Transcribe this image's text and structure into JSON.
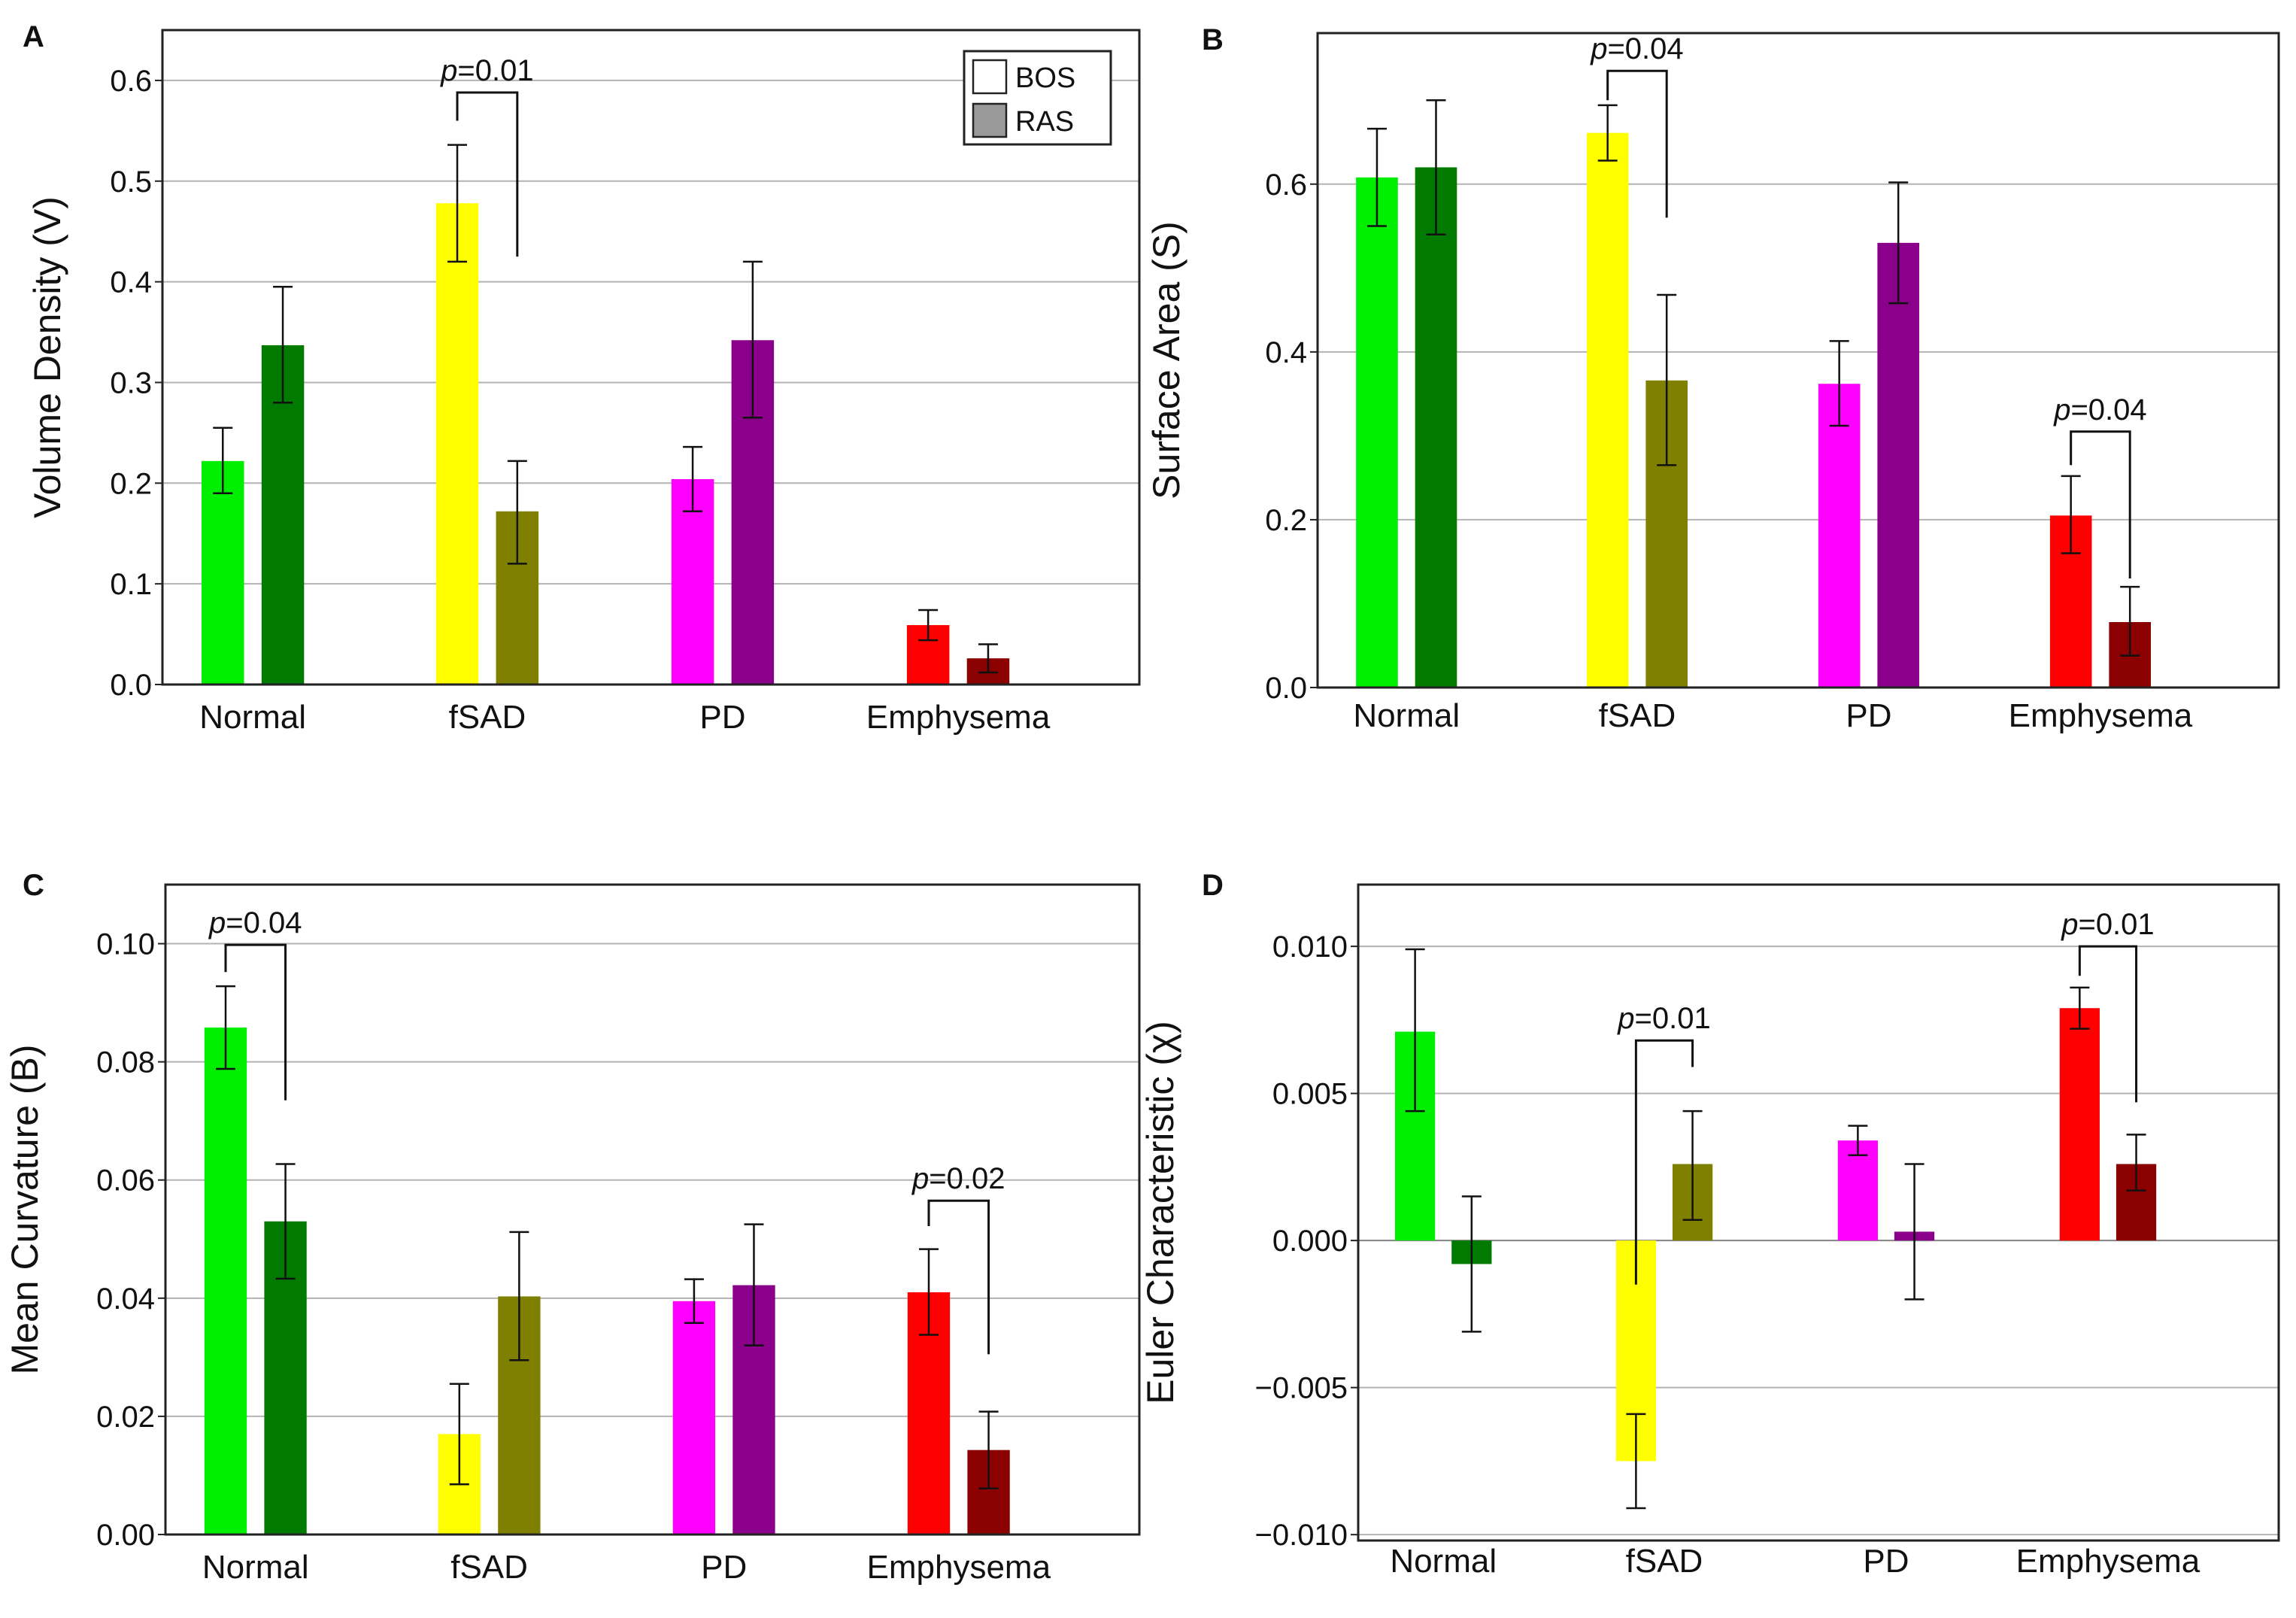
{
  "figure": {
    "legend": [
      {
        "label": "BOS",
        "swatch": "#ffffff"
      },
      {
        "label": "RAS",
        "swatch": "#999999"
      }
    ]
  },
  "colors": {
    "Normal": [
      "#00ee00",
      "#007a00"
    ],
    "fSAD": [
      "#ffff00",
      "#808000"
    ],
    "PD": [
      "#ff00ff",
      "#8b008b"
    ],
    "Emphysema": [
      "#ff0000",
      "#8b0000"
    ]
  },
  "chart_data": [
    {
      "panel": "A",
      "type": "bar",
      "ylabel": "Volume Density (V)",
      "categories": [
        "Normal",
        "fSAD",
        "PD",
        "Emphysema"
      ],
      "series": [
        {
          "name": "BOS",
          "values": [
            0.222,
            0.478,
            0.204,
            0.059
          ],
          "err_low": [
            0.19,
            0.42,
            0.172,
            0.044
          ],
          "err_high": [
            0.255,
            0.536,
            0.236,
            0.074
          ]
        },
        {
          "name": "RAS",
          "values": [
            0.337,
            0.172,
            0.342,
            0.026
          ],
          "err_low": [
            0.28,
            0.12,
            0.265,
            0.012
          ],
          "err_high": [
            0.395,
            0.222,
            0.42,
            0.04
          ]
        }
      ],
      "ylim": [
        0,
        0.65
      ],
      "yticks": [
        "0.0",
        "0.1",
        "0.2",
        "0.3",
        "0.4",
        "0.5",
        "0.6"
      ],
      "ytick_values": [
        0,
        0.1,
        0.2,
        0.3,
        0.4,
        0.5,
        0.6
      ],
      "annotations": [
        {
          "category": "fSAD",
          "p": "=0.01",
          "bracket_y": 0.588,
          "left_drop": 0.56,
          "right_drop": 0.425
        }
      ]
    },
    {
      "panel": "B",
      "type": "bar",
      "ylabel": "Surface Area (S)",
      "categories": [
        "Normal",
        "fSAD",
        "PD",
        "Emphysema"
      ],
      "series": [
        {
          "name": "BOS",
          "values": [
            0.608,
            0.661,
            0.362,
            0.205
          ],
          "err_low": [
            0.55,
            0.628,
            0.312,
            0.16
          ],
          "err_high": [
            0.666,
            0.694,
            0.413,
            0.252
          ]
        },
        {
          "name": "RAS",
          "values": [
            0.62,
            0.366,
            0.53,
            0.078
          ],
          "err_low": [
            0.54,
            0.265,
            0.458,
            0.038
          ],
          "err_high": [
            0.7,
            0.468,
            0.602,
            0.12
          ]
        }
      ],
      "ylim": [
        0,
        0.78
      ],
      "yticks": [
        "0.0",
        "0.2",
        "0.4",
        "0.6"
      ],
      "ytick_values": [
        0,
        0.2,
        0.4,
        0.6
      ],
      "annotations": [
        {
          "category": "fSAD",
          "p": "=0.04",
          "bracket_y": 0.735,
          "left_drop": 0.7,
          "right_drop": 0.56
        },
        {
          "category": "Emphysema",
          "p": "=0.04",
          "bracket_y": 0.305,
          "left_drop": 0.265,
          "right_drop": 0.13
        }
      ]
    },
    {
      "panel": "C",
      "type": "bar",
      "ylabel": "Mean Curvature (B)",
      "categories": [
        "Normal",
        "fSAD",
        "PD",
        "Emphysema"
      ],
      "series": [
        {
          "name": "BOS",
          "values": [
            0.0858,
            0.017,
            0.0395,
            0.041
          ],
          "err_low": [
            0.0788,
            0.0085,
            0.0358,
            0.0338
          ],
          "err_high": [
            0.0928,
            0.0255,
            0.0432,
            0.0483
          ]
        },
        {
          "name": "RAS",
          "values": [
            0.053,
            0.0403,
            0.0422,
            0.0143
          ],
          "err_low": [
            0.0433,
            0.0295,
            0.032,
            0.0078
          ],
          "err_high": [
            0.0627,
            0.0512,
            0.0525,
            0.0208
          ]
        }
      ],
      "ylim": [
        0,
        0.11
      ],
      "yticks": [
        "0.00",
        "0.02",
        "0.04",
        "0.06",
        "0.08",
        "0.10"
      ],
      "ytick_values": [
        0,
        0.02,
        0.04,
        0.06,
        0.08,
        0.1
      ],
      "annotations": [
        {
          "category": "Normal",
          "p": "=0.04",
          "bracket_y": 0.0998,
          "left_drop": 0.0952,
          "right_drop": 0.0735
        },
        {
          "category": "Emphysema",
          "p": "=0.02",
          "bracket_y": 0.0565,
          "left_drop": 0.0522,
          "right_drop": 0.0305
        }
      ]
    },
    {
      "panel": "D",
      "type": "bar",
      "ylabel": "Euler Characteristic (χ)",
      "categories": [
        "Normal",
        "fSAD",
        "PD",
        "Emphysema"
      ],
      "series": [
        {
          "name": "BOS",
          "values": [
            0.0071,
            -0.0075,
            0.0034,
            0.0079
          ],
          "err_low": [
            0.0044,
            -0.0091,
            0.0029,
            0.0072
          ],
          "err_high": [
            0.0099,
            -0.0059,
            0.0039,
            0.0086
          ]
        },
        {
          "name": "RAS",
          "values": [
            -0.0008,
            0.0026,
            0.0003,
            0.0026
          ],
          "err_low": [
            -0.0031,
            0.0007,
            -0.002,
            0.0017
          ],
          "err_high": [
            0.0015,
            0.0044,
            0.0026,
            0.0036
          ]
        }
      ],
      "ylim": [
        -0.0102,
        0.0121
      ],
      "yticks": [
        "−0.010",
        "−0.005",
        "0.000",
        "0.005",
        "0.010"
      ],
      "ytick_values": [
        -0.01,
        -0.005,
        0,
        0.005,
        0.01
      ],
      "annotations": [
        {
          "category": "fSAD",
          "p": "=0.01",
          "bracket_y": 0.0068,
          "left_drop": -0.0015,
          "right_drop": 0.0059
        },
        {
          "category": "Emphysema",
          "p": "=0.01",
          "bracket_y": 0.01,
          "left_drop": 0.009,
          "right_drop": 0.0047
        }
      ]
    }
  ]
}
